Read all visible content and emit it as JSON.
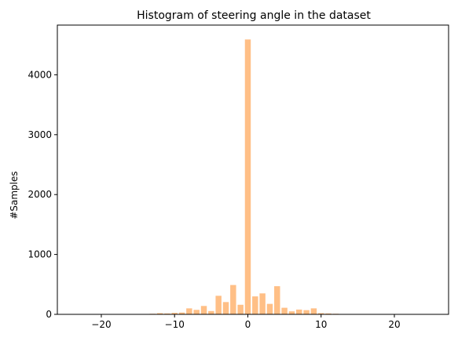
{
  "chart_data": {
    "type": "bar",
    "title": "Histogram of steering angle in the dataset",
    "xlabel": "",
    "ylabel": "#Samples",
    "xlim": [
      -26,
      27.4
    ],
    "ylim": [
      0,
      4830
    ],
    "xticks": [
      -20,
      -10,
      0,
      10,
      20
    ],
    "xtick_labels": [
      "−20",
      "−10",
      "0",
      "10",
      "20"
    ],
    "yticks": [
      0,
      1000,
      2000,
      3000,
      4000
    ],
    "ytick_labels": [
      "0",
      "1000",
      "2000",
      "3000",
      "4000"
    ],
    "bar_width": 0.8,
    "bar_color": "#ffbf86",
    "grid": false,
    "bins": [
      {
        "x": -13,
        "value": 10
      },
      {
        "x": -12,
        "value": 20
      },
      {
        "x": -11,
        "value": 15
      },
      {
        "x": -10,
        "value": 25
      },
      {
        "x": -9,
        "value": 30
      },
      {
        "x": -8,
        "value": 100
      },
      {
        "x": -7,
        "value": 75
      },
      {
        "x": -6,
        "value": 140
      },
      {
        "x": -5,
        "value": 55
      },
      {
        "x": -4,
        "value": 310
      },
      {
        "x": -3,
        "value": 205
      },
      {
        "x": -2,
        "value": 490
      },
      {
        "x": -1,
        "value": 160
      },
      {
        "x": 0,
        "value": 4590
      },
      {
        "x": 1,
        "value": 300
      },
      {
        "x": 2,
        "value": 350
      },
      {
        "x": 3,
        "value": 175
      },
      {
        "x": 4,
        "value": 470
      },
      {
        "x": 5,
        "value": 110
      },
      {
        "x": 6,
        "value": 50
      },
      {
        "x": 7,
        "value": 80
      },
      {
        "x": 8,
        "value": 70
      },
      {
        "x": 9,
        "value": 100
      },
      {
        "x": 10,
        "value": 20
      },
      {
        "x": 11,
        "value": 15
      },
      {
        "x": 12,
        "value": 10
      }
    ]
  }
}
